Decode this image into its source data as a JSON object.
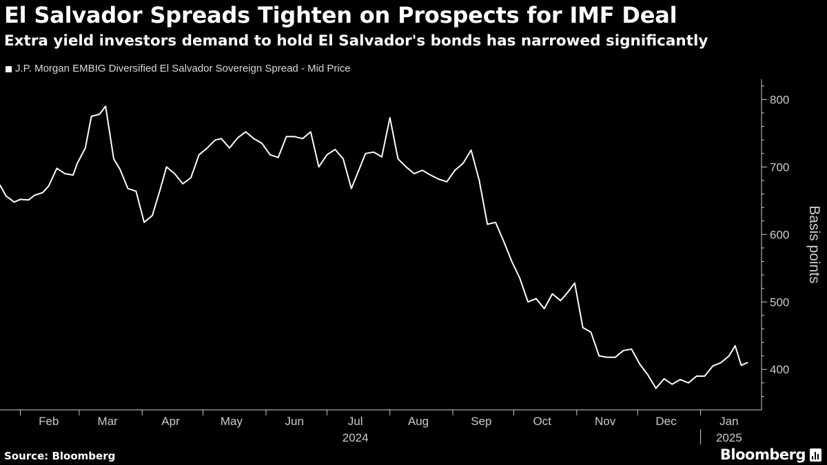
{
  "header": {
    "title": "El Salvador Spreads Tighten on Prospects for IMF Deal",
    "subtitle": "Extra yield investors demand to hold El Salvador's bonds has narrowed significantly"
  },
  "footer": {
    "source": "Source: Bloomberg",
    "brand": "Bloomberg"
  },
  "colors": {
    "background": "#000000",
    "line": "#ffffff",
    "text": "#ffffff",
    "muted_text": "#cccccc"
  },
  "icons": {
    "brand": "bloomberg-chart-icon"
  },
  "chart_data": {
    "type": "line",
    "title": "El Salvador Spreads Tighten on Prospects for IMF Deal",
    "subtitle": "Extra yield investors demand to hold El Salvador's bonds has narrowed significantly",
    "ylabel": "Basis points",
    "xlabel": "",
    "ylim": [
      340,
      830
    ],
    "yticks": [
      400,
      500,
      600,
      700,
      800
    ],
    "xlim": [
      "2024-01-22",
      "2025-01-31"
    ],
    "grid": false,
    "legend_position": "top-left",
    "x_ticks": [
      {
        "label": "Feb",
        "date": "2024-02-15"
      },
      {
        "label": "Mar",
        "date": "2024-03-15"
      },
      {
        "label": "Apr",
        "date": "2024-04-15"
      },
      {
        "label": "May",
        "date": "2024-05-15"
      },
      {
        "label": "Jun",
        "date": "2024-06-15"
      },
      {
        "label": "Jul",
        "date": "2024-07-15"
      },
      {
        "label": "Aug",
        "date": "2024-08-15"
      },
      {
        "label": "Sep",
        "date": "2024-09-15"
      },
      {
        "label": "Oct",
        "date": "2024-10-15"
      },
      {
        "label": "Nov",
        "date": "2024-11-15"
      },
      {
        "label": "Dec",
        "date": "2024-12-15"
      },
      {
        "label": "Jan",
        "date": "2025-01-15"
      }
    ],
    "month_boundaries": [
      "2024-02-01",
      "2024-03-01",
      "2024-04-01",
      "2024-05-01",
      "2024-06-01",
      "2024-07-01",
      "2024-08-01",
      "2024-09-01",
      "2024-10-01",
      "2024-11-01",
      "2024-12-01",
      "2025-01-01",
      "2025-02-01"
    ],
    "year_labels": [
      {
        "label": "2024",
        "date": "2024-07-15"
      },
      {
        "label": "2025",
        "date": "2025-01-15"
      }
    ],
    "year_separator": "2025-01-01",
    "series": [
      {
        "name": "J.P. Morgan EMBIG Diversified El Salvador Sovereign Spread - Mid Price",
        "x": [
          "2024-01-22",
          "2024-01-25",
          "2024-01-29",
          "2024-02-01",
          "2024-02-05",
          "2024-02-08",
          "2024-02-12",
          "2024-02-15",
          "2024-02-19",
          "2024-02-23",
          "2024-02-27",
          "2024-02-29",
          "2024-03-04",
          "2024-03-07",
          "2024-03-11",
          "2024-03-14",
          "2024-03-18",
          "2024-03-21",
          "2024-03-25",
          "2024-03-29",
          "2024-04-02",
          "2024-04-06",
          "2024-04-10",
          "2024-04-13",
          "2024-04-17",
          "2024-04-21",
          "2024-04-25",
          "2024-04-29",
          "2024-05-03",
          "2024-05-07",
          "2024-05-10",
          "2024-05-14",
          "2024-05-18",
          "2024-05-22",
          "2024-05-26",
          "2024-05-30",
          "2024-06-03",
          "2024-06-07",
          "2024-06-11",
          "2024-06-15",
          "2024-06-19",
          "2024-06-23",
          "2024-06-27",
          "2024-07-01",
          "2024-07-05",
          "2024-07-09",
          "2024-07-13",
          "2024-07-16",
          "2024-07-20",
          "2024-07-24",
          "2024-07-28",
          "2024-08-01",
          "2024-08-05",
          "2024-08-09",
          "2024-08-13",
          "2024-08-17",
          "2024-08-21",
          "2024-08-25",
          "2024-08-29",
          "2024-09-02",
          "2024-09-06",
          "2024-09-10",
          "2024-09-14",
          "2024-09-18",
          "2024-09-22",
          "2024-09-26",
          "2024-09-30",
          "2024-10-04",
          "2024-10-08",
          "2024-10-12",
          "2024-10-16",
          "2024-10-20",
          "2024-10-24",
          "2024-10-27",
          "2024-10-31",
          "2024-11-04",
          "2024-11-08",
          "2024-11-12",
          "2024-11-16",
          "2024-11-20",
          "2024-11-24",
          "2024-11-28",
          "2024-12-02",
          "2024-12-06",
          "2024-12-10",
          "2024-12-14",
          "2024-12-18",
          "2024-12-22",
          "2024-12-26",
          "2024-12-30",
          "2025-01-03",
          "2025-01-07",
          "2025-01-11",
          "2025-01-15",
          "2025-01-18",
          "2025-01-21",
          "2025-01-24"
        ],
        "values": [
          673,
          657,
          648,
          652,
          651,
          658,
          662,
          672,
          698,
          690,
          688,
          705,
          728,
          775,
          778,
          790,
          712,
          697,
          668,
          664,
          618,
          628,
          668,
          700,
          690,
          675,
          684,
          718,
          728,
          740,
          742,
          728,
          743,
          752,
          742,
          735,
          718,
          714,
          745,
          745,
          742,
          752,
          700,
          718,
          726,
          712,
          668,
          690,
          720,
          722,
          715,
          773,
          712,
          700,
          690,
          695,
          688,
          682,
          678,
          695,
          705,
          725,
          680,
          615,
          618,
          590,
          560,
          535,
          500,
          505,
          490,
          512,
          502,
          512,
          528,
          462,
          455,
          420,
          418,
          418,
          428,
          430,
          408,
          392,
          372,
          386,
          378,
          385,
          380,
          390,
          390,
          405,
          410,
          420,
          435,
          406,
          410
        ]
      }
    ]
  }
}
